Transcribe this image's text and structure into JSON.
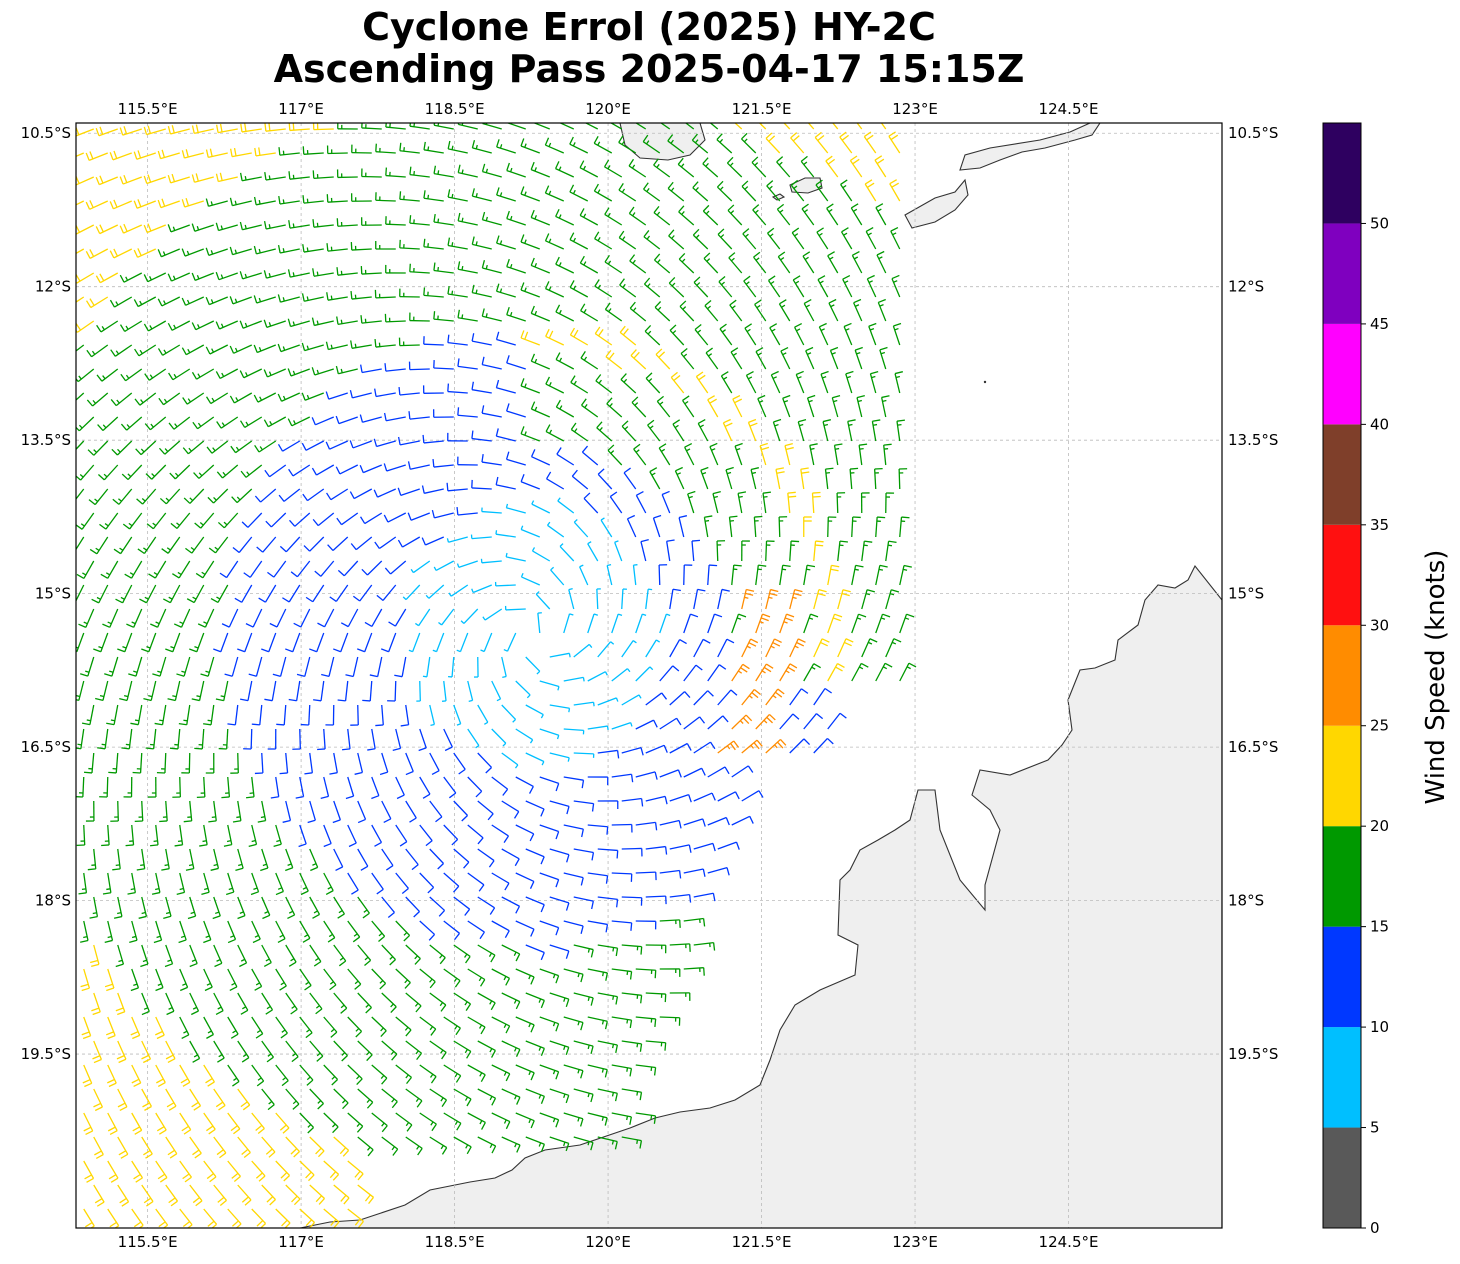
{
  "title_line1": "Cyclone Errol (2025) HY-2C",
  "title_line2": "Ascending Pass 2025-04-17 15:15Z",
  "map": {
    "lon_range": [
      114.8,
      126.0
    ],
    "lat_range": [
      -21.2,
      -10.4
    ],
    "lon_ticks": [
      "115.5°E",
      "117°E",
      "118.5°E",
      "120°E",
      "121.5°E",
      "123°E",
      "124.5°E"
    ],
    "lat_ticks": [
      "10.5°S",
      "12°S",
      "13.5°S",
      "15°S",
      "16.5°S",
      "18°S",
      "19.5°S"
    ],
    "gridlines": true,
    "land_color": "#efefef",
    "coastline_color": "#333333"
  },
  "cyclone_center": {
    "lon": 119.3,
    "lat": -15.4
  },
  "colorbar": {
    "label": "Wind Speed (knots)",
    "ticks": [
      "0",
      "5",
      "10",
      "15",
      "20",
      "25",
      "30",
      "35",
      "40",
      "45",
      "50"
    ],
    "bins": [
      {
        "min": 0,
        "max": 5,
        "color": "#595959"
      },
      {
        "min": 5,
        "max": 10,
        "color": "#00bfff"
      },
      {
        "min": 10,
        "max": 15,
        "color": "#0038ff"
      },
      {
        "min": 15,
        "max": 20,
        "color": "#009900"
      },
      {
        "min": 20,
        "max": 25,
        "color": "#ffd700"
      },
      {
        "min": 25,
        "max": 30,
        "color": "#ff8c00"
      },
      {
        "min": 30,
        "max": 35,
        "color": "#ff1010"
      },
      {
        "min": 35,
        "max": 40,
        "color": "#7f3f2a"
      },
      {
        "min": 40,
        "max": 45,
        "color": "#ff00ff"
      },
      {
        "min": 45,
        "max": 50,
        "color": "#7f00bf"
      },
      {
        "min": 50,
        "max": 55,
        "color": "#2e0060"
      }
    ]
  }
}
